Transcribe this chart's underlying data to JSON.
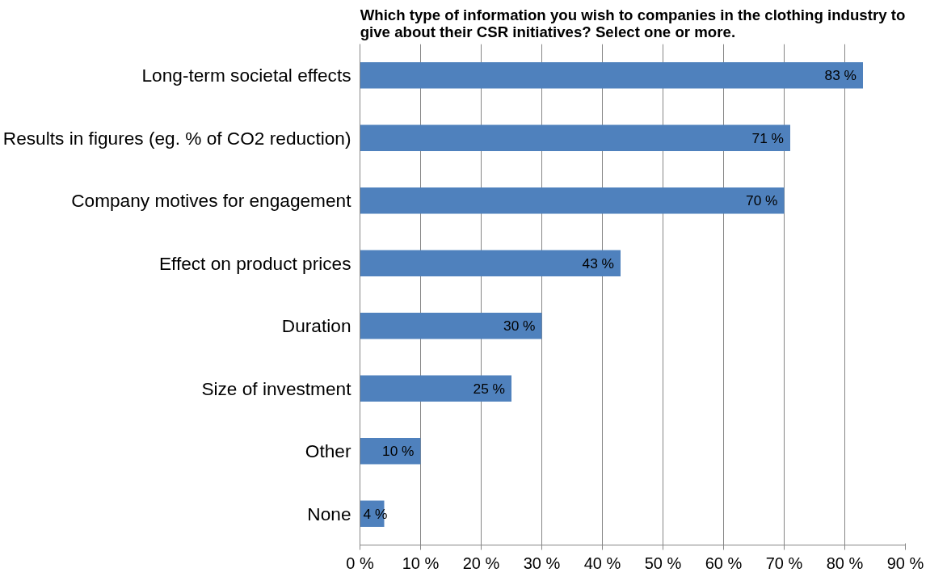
{
  "chart_data": {
    "type": "bar",
    "orientation": "horizontal",
    "title": "Which type of information you wish to companies in the clothing industry to\ngive about their CSR initiatives? Select one or more.",
    "categories": [
      "Long-term societal effects",
      "Results in figures (eg. % of CO2 reduction)",
      "Company motives for engagement",
      "Effect on product prices",
      "Duration",
      "Size of investment",
      "Other",
      "None"
    ],
    "values": [
      83,
      71,
      70,
      43,
      30,
      25,
      10,
      4
    ],
    "value_labels": [
      "83 %",
      "71 %",
      "70 %",
      "43 %",
      "30 %",
      "25 %",
      "10 %",
      "4 %"
    ],
    "color": "#4f81bd",
    "xlim": [
      0,
      90
    ],
    "xticks": [
      {
        "value": 0,
        "label": "0 %"
      },
      {
        "value": 10,
        "label": "10 %"
      },
      {
        "value": 20,
        "label": "20 %"
      },
      {
        "value": 30,
        "label": "30 %"
      },
      {
        "value": 40,
        "label": "40 %"
      },
      {
        "value": 50,
        "label": "50 %"
      },
      {
        "value": 60,
        "label": "60 %"
      },
      {
        "value": 70,
        "label": "70 %"
      },
      {
        "value": 80,
        "label": "80 %"
      },
      {
        "value": 90,
        "label": "90 %"
      }
    ],
    "grid": "x"
  }
}
